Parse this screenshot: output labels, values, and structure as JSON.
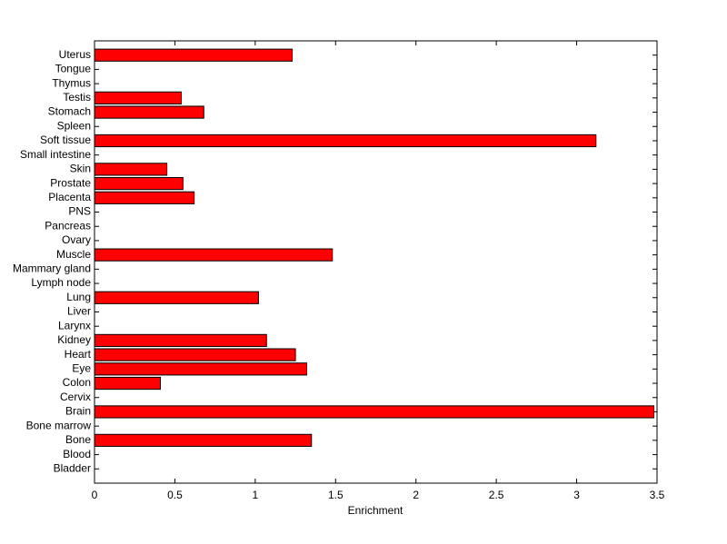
{
  "chart_data": {
    "type": "barh",
    "xlabel": "Enrichment",
    "categories": [
      "Bladder",
      "Blood",
      "Bone",
      "Bone marrow",
      "Brain",
      "Cervix",
      "Colon",
      "Eye",
      "Heart",
      "Kidney",
      "Larynx",
      "Liver",
      "Lung",
      "Lymph node",
      "Mammary gland",
      "Muscle",
      "Ovary",
      "Pancreas",
      "PNS",
      "Placenta",
      "Prostate",
      "Skin",
      "Small intestine",
      "Soft tissue",
      "Spleen",
      "Stomach",
      "Testis",
      "Thymus",
      "Tongue",
      "Uterus"
    ],
    "values": [
      0,
      0,
      1.35,
      0,
      3.48,
      0,
      0.41,
      1.32,
      1.25,
      1.07,
      0,
      0,
      1.02,
      0,
      0,
      1.48,
      0,
      0,
      0,
      0.62,
      0.55,
      0.45,
      0,
      3.12,
      0,
      0.68,
      0.54,
      0,
      0,
      1.23
    ],
    "color": "#ff0000",
    "xlim": [
      0,
      3.5
    ],
    "xticks": [
      0,
      0.5,
      1,
      1.5,
      2,
      2.5,
      3,
      3.5
    ]
  }
}
